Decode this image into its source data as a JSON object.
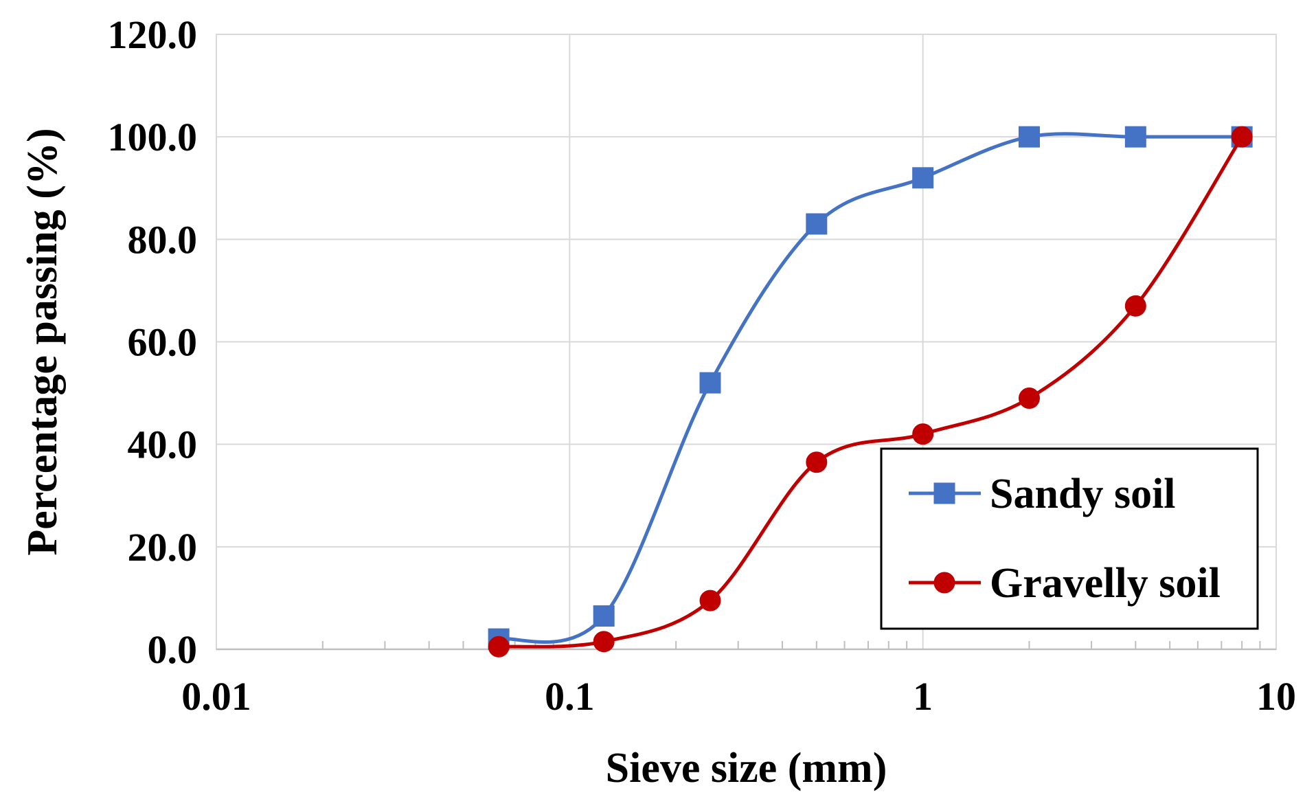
{
  "chart_data": {
    "type": "line",
    "xscale": "log",
    "xlabel": "Sieve size (mm)",
    "ylabel": "Percentage passing (%)",
    "xlim": [
      0.01,
      10
    ],
    "ylim": [
      0,
      120
    ],
    "x_ticks": [
      "0.01",
      "0.1",
      "1",
      "10"
    ],
    "y_ticks": [
      "0.0",
      "20.0",
      "40.0",
      "60.0",
      "80.0",
      "100.0",
      "120.0"
    ],
    "grid": true,
    "legend_position": "bottom-right",
    "series": [
      {
        "name": "Sandy soil",
        "color": "#4472C4",
        "marker": "square",
        "x": [
          0.063,
          0.125,
          0.25,
          0.5,
          1,
          2,
          4,
          8
        ],
        "values": [
          2.0,
          6.5,
          52.0,
          83.0,
          92.0,
          100.0,
          100.0,
          100.0
        ]
      },
      {
        "name": "Gravelly soil",
        "color": "#C00000",
        "marker": "circle",
        "x": [
          0.063,
          0.125,
          0.25,
          0.5,
          1,
          2,
          4,
          8
        ],
        "values": [
          0.5,
          1.5,
          9.5,
          36.5,
          42.0,
          49.0,
          67.0,
          100.0
        ]
      }
    ]
  }
}
